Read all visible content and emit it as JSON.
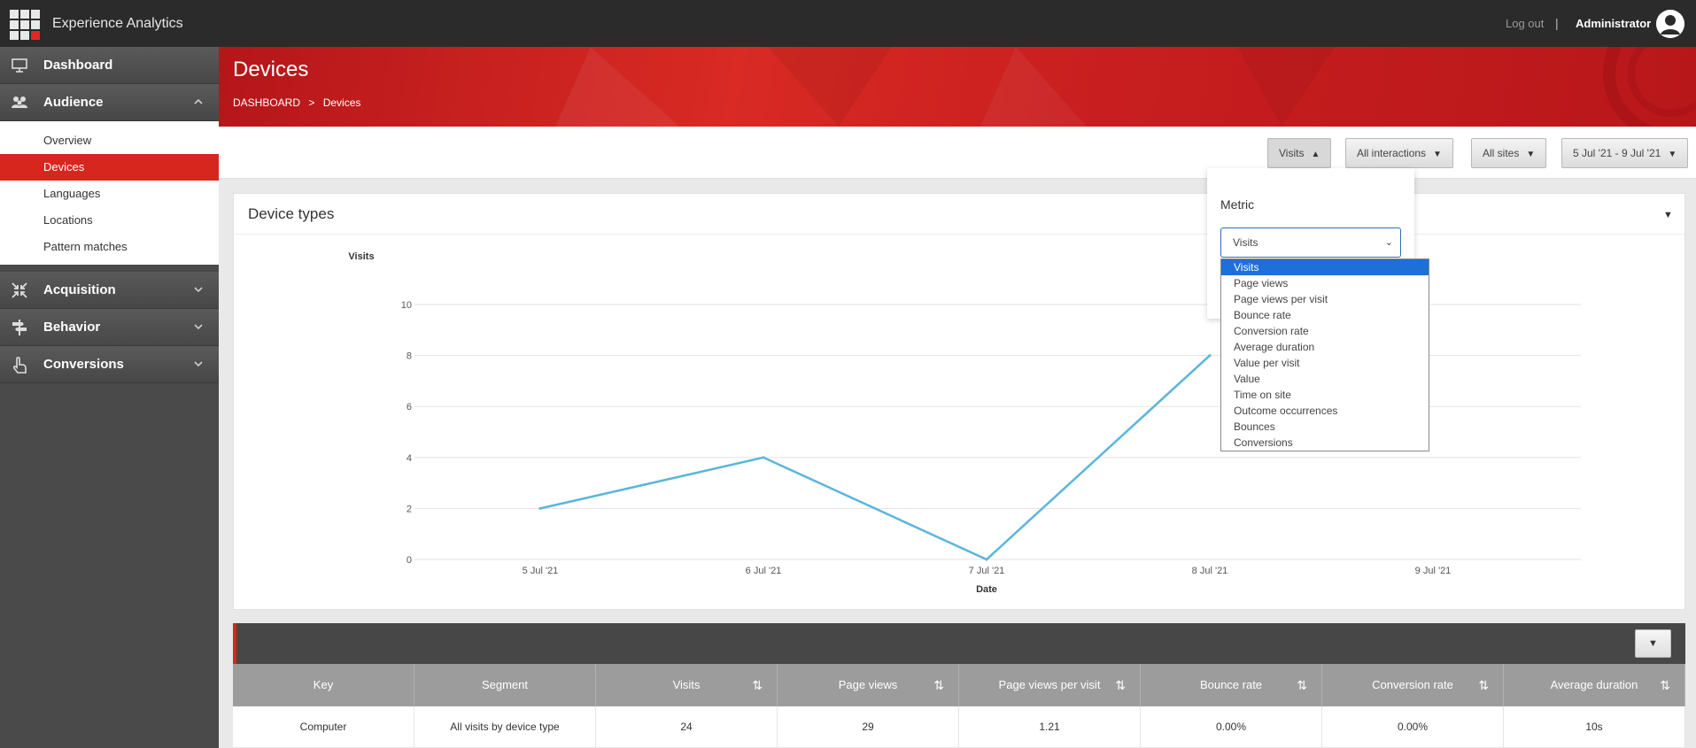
{
  "app": {
    "title": "Experience Analytics",
    "logout": "Log out",
    "separator": "|",
    "user": "Administrator"
  },
  "sidebar": {
    "sections": [
      {
        "label": "Dashboard",
        "icon": "monitor-icon"
      },
      {
        "label": "Audience",
        "icon": "people-icon",
        "expanded": true
      },
      {
        "label": "Acquisition",
        "icon": "arrows-in-icon"
      },
      {
        "label": "Behavior",
        "icon": "signpost-icon"
      },
      {
        "label": "Conversions",
        "icon": "touch-icon"
      }
    ],
    "audience_items": [
      {
        "label": "Overview"
      },
      {
        "label": "Devices",
        "active": true
      },
      {
        "label": "Languages"
      },
      {
        "label": "Locations"
      },
      {
        "label": "Pattern matches"
      }
    ]
  },
  "header": {
    "title": "Devices",
    "breadcrumb": [
      "DASHBOARD",
      "Devices"
    ],
    "crumb_sep": ">"
  },
  "filters": {
    "metric": "Visits",
    "interactions": "All interactions",
    "sites": "All sites",
    "date_range": "5 Jul '21 - 9 Jul '21"
  },
  "metric_dropdown": {
    "label": "Metric",
    "selected": "Visits",
    "options": [
      "Visits",
      "Page views",
      "Page views per visit",
      "Bounce rate",
      "Conversion rate",
      "Average duration",
      "Value per visit",
      "Value",
      "Time on site",
      "Outcome occurrences",
      "Bounces",
      "Conversions"
    ]
  },
  "panel": {
    "title": "Device types"
  },
  "chart_data": {
    "type": "line",
    "x": [
      "5 Jul '21",
      "6 Jul '21",
      "7 Jul '21",
      "8 Jul '21",
      "9 Jul '21"
    ],
    "series": [
      {
        "values": [
          2,
          4,
          0,
          8,
          null
        ]
      }
    ],
    "xlabel": "Date",
    "ylabel": "Visits",
    "yticks": [
      0,
      2,
      4,
      6,
      8,
      10
    ],
    "ylim": [
      0,
      10
    ],
    "grid": true,
    "line_color": "#5bb5dc"
  },
  "table": {
    "columns": [
      "Key",
      "Segment",
      "Visits",
      "Page views",
      "Page views per visit",
      "Bounce rate",
      "Conversion rate",
      "Average duration"
    ],
    "sortable": [
      false,
      false,
      true,
      true,
      true,
      true,
      true,
      true
    ],
    "rows": [
      [
        "Computer",
        "All visits by device type",
        "24",
        "29",
        "1.21",
        "0.00%",
        "0.00%",
        "10s"
      ]
    ]
  },
  "colors": {
    "accent": "#d7261e",
    "topbar": "#2b2b2b",
    "sidebar": "#4a4a4a",
    "line": "#5bb5dc"
  }
}
